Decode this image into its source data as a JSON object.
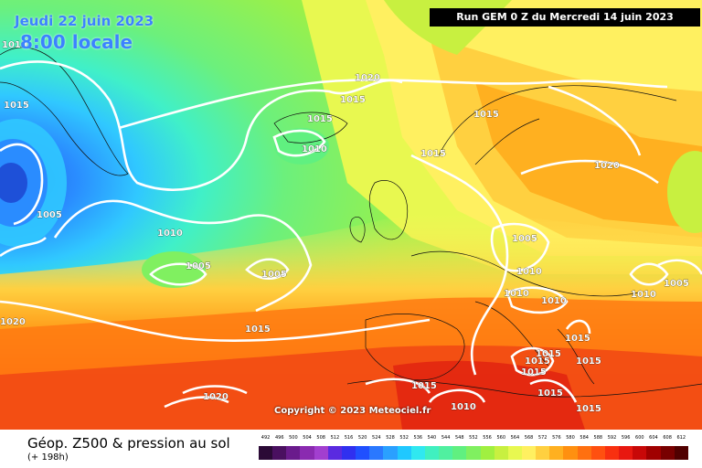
{
  "header": {
    "date": "Jeudi 22 juin 2023",
    "time": "8:00 locale",
    "run": "Run GEM 0 Z du Mercredi 14 juin 2023"
  },
  "map": {
    "copyright_line1": "Copyright © 2023 Meteociel.fr",
    "copyright_line2": "Meteociel.fr",
    "pressure_labels": [
      "1010",
      "1015",
      "1005",
      "1020",
      "1015",
      "1015",
      "1010",
      "1015",
      "1015",
      "1020",
      "1010",
      "1005",
      "1005",
      "1005",
      "1010",
      "1010",
      "1010",
      "1010",
      "1005",
      "1020",
      "1015",
      "1015",
      "1015",
      "1015",
      "1015",
      "1015",
      "1015",
      "1010",
      "1015",
      "1015",
      "1020"
    ]
  },
  "footer": {
    "title": "Géop. Z500 & pression au sol",
    "subtitle": "(+ 198h)"
  },
  "scale": {
    "labels": [
      "492",
      "496",
      "500",
      "504",
      "508",
      "512",
      "516",
      "520",
      "524",
      "528",
      "532",
      "536",
      "540",
      "544",
      "548",
      "552",
      "556",
      "560",
      "564",
      "568",
      "572",
      "576",
      "580",
      "584",
      "588",
      "592",
      "596",
      "600",
      "604",
      "608",
      "612"
    ],
    "colors": [
      "#2b0a36",
      "#4a1060",
      "#6a1b8c",
      "#8a2ab0",
      "#a23fcf",
      "#5a2ae0",
      "#3030f0",
      "#2050ff",
      "#2a78ff",
      "#2aa0ff",
      "#20c8ff",
      "#30e8f0",
      "#40f0c0",
      "#50f0a0",
      "#60f080",
      "#80f060",
      "#a0f040",
      "#c8f040",
      "#e8f850",
      "#fff060",
      "#ffd040",
      "#ffb020",
      "#ff9010",
      "#ff7010",
      "#ff5010",
      "#f83010",
      "#e81810",
      "#c80808",
      "#a00000",
      "#780000",
      "#500000"
    ]
  },
  "colors": {
    "ocean_blue": "#2aa0ff",
    "deep_low": "#2060e8",
    "green": "#7cf070",
    "yellow": "#fff060",
    "orange": "#ffb020",
    "red": "#f04018"
  }
}
